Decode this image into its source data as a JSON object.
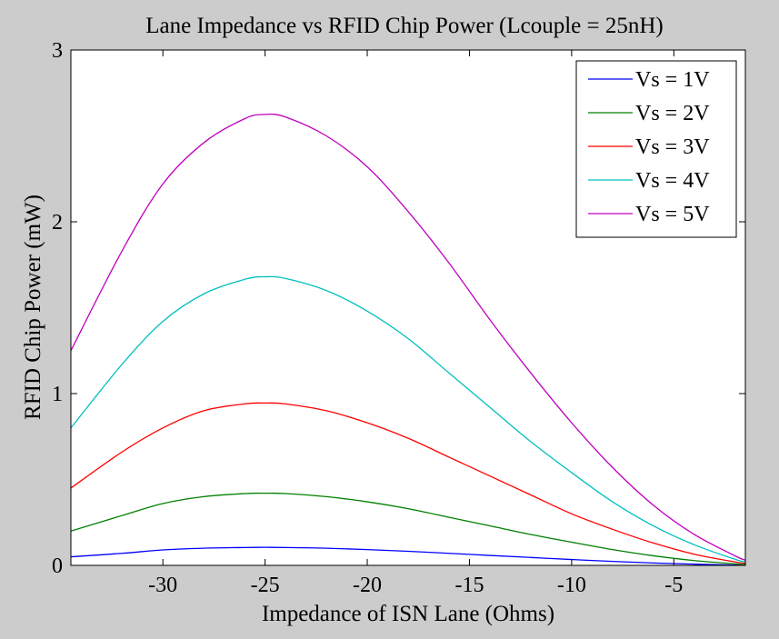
{
  "chart_data": {
    "type": "line",
    "title": "Lane Impedance vs RFID Chip Power (Lcouple = 25nH)",
    "xlabel": "Impedance of ISN Lane (Ohms)",
    "ylabel": "RFID Chip Power (mW)",
    "xlim": [
      -34.5,
      -1.5
    ],
    "ylim": [
      0,
      3
    ],
    "xticks": [
      -30,
      -25,
      -20,
      -15,
      -10,
      -5
    ],
    "xtick_labels": [
      "-30",
      "-25",
      "-20",
      "-15",
      "-10",
      "-5"
    ],
    "yticks": [
      0,
      1,
      2,
      3
    ],
    "ytick_labels": [
      "0",
      "1",
      "2",
      "3"
    ],
    "grid": false,
    "legend_position": "top-right",
    "x": [
      -34.5,
      -32,
      -30,
      -28,
      -26,
      -25,
      -24,
      -22,
      -20,
      -18,
      -16,
      -14,
      -12,
      -10,
      -8,
      -6,
      -4,
      -2,
      -1.5
    ],
    "series": [
      {
        "name": "Vs = 1V",
        "color": "#0000ff",
        "values": [
          0.05,
          0.07,
          0.09,
          0.1,
          0.104,
          0.105,
          0.104,
          0.1,
          0.092,
          0.082,
          0.07,
          0.058,
          0.046,
          0.034,
          0.023,
          0.014,
          0.007,
          0.002,
          0.001
        ]
      },
      {
        "name": "Vs = 2V",
        "color": "#008000",
        "values": [
          0.2,
          0.29,
          0.36,
          0.4,
          0.418,
          0.42,
          0.418,
          0.4,
          0.37,
          0.33,
          0.28,
          0.23,
          0.18,
          0.135,
          0.092,
          0.056,
          0.028,
          0.009,
          0.005
        ]
      },
      {
        "name": "Vs = 3V",
        "color": "#ff0000",
        "values": [
          0.45,
          0.66,
          0.8,
          0.9,
          0.94,
          0.945,
          0.94,
          0.9,
          0.83,
          0.74,
          0.63,
          0.52,
          0.41,
          0.3,
          0.21,
          0.13,
          0.065,
          0.02,
          0.012
        ]
      },
      {
        "name": "Vs = 4V",
        "color": "#00bfbf",
        "values": [
          0.8,
          1.17,
          1.42,
          1.58,
          1.665,
          1.68,
          1.67,
          1.6,
          1.48,
          1.32,
          1.12,
          0.92,
          0.72,
          0.54,
          0.37,
          0.23,
          0.12,
          0.035,
          0.02
        ]
      },
      {
        "name": "Vs = 5V",
        "color": "#bf00bf",
        "values": [
          1.25,
          1.83,
          2.22,
          2.46,
          2.6,
          2.625,
          2.61,
          2.5,
          2.32,
          2.06,
          1.76,
          1.43,
          1.12,
          0.83,
          0.57,
          0.35,
          0.18,
          0.055,
          0.03
        ]
      }
    ]
  }
}
